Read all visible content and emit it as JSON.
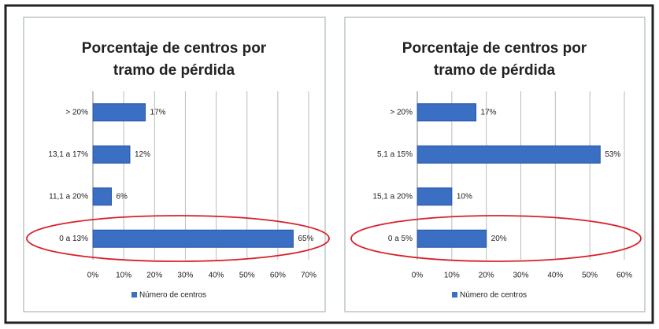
{
  "chart_data": [
    {
      "type": "barh",
      "title": "Porcentaje de centros por tramo de pérdida",
      "categories": [
        "> 20%",
        "13,1 a 17%",
        "11,1 a 20%",
        "0 a 13%"
      ],
      "series": [
        {
          "name": "Número de centros",
          "color": "#3a6fc4",
          "values": [
            17,
            12,
            6,
            65
          ],
          "value_labels": [
            "17%",
            "12%",
            "6%",
            "65%"
          ]
        }
      ],
      "xlim": [
        0,
        70
      ],
      "xticks": [
        {
          "value": 0,
          "label": "0%"
        },
        {
          "value": 10,
          "label": "10%"
        },
        {
          "value": 20,
          "label": "20%"
        },
        {
          "value": 30,
          "label": "30%"
        },
        {
          "value": 40,
          "label": "40%"
        },
        {
          "value": 50,
          "label": "50%"
        },
        {
          "value": 60,
          "label": "60%"
        },
        {
          "value": 70,
          "label": "70%"
        }
      ],
      "grid": true,
      "legend": "bottom"
    },
    {
      "type": "barh",
      "title": "Porcentaje de centros por tramo de pérdida",
      "categories": [
        "> 20%",
        "5,1 a 15%",
        "15,1 a 20%",
        "0 a 5%"
      ],
      "series": [
        {
          "name": "Número de centros",
          "color": "#3a6fc4",
          "values": [
            17,
            53,
            10,
            20
          ],
          "value_labels": [
            "17%",
            "53%",
            "10%",
            "20%"
          ]
        }
      ],
      "xlim": [
        0,
        60
      ],
      "xticks": [
        {
          "value": 0,
          "label": "0%"
        },
        {
          "value": 10,
          "label": "10%"
        },
        {
          "value": 20,
          "label": "20%"
        },
        {
          "value": 30,
          "label": "30%"
        },
        {
          "value": 40,
          "label": "40%"
        },
        {
          "value": 50,
          "label": "50%"
        },
        {
          "value": 60,
          "label": "60%"
        }
      ],
      "grid": true,
      "legend": "bottom"
    }
  ]
}
